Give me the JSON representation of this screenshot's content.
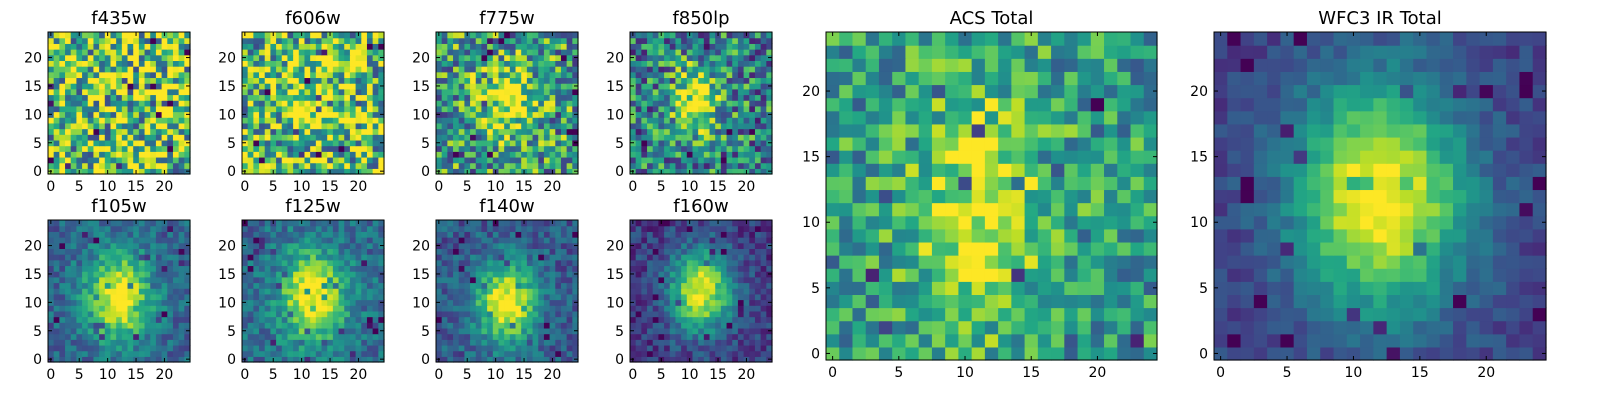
{
  "chart_data": [
    {
      "type": "heatmap",
      "title": "f435w",
      "xlim": [
        0,
        24
      ],
      "ylim": [
        0,
        24
      ],
      "x_ticks": [
        0,
        5,
        10,
        15,
        20
      ],
      "y_ticks": [
        0,
        5,
        10,
        15,
        20
      ],
      "colormap": "viridis",
      "source_center": null
    },
    {
      "type": "heatmap",
      "title": "f606w",
      "xlim": [
        0,
        24
      ],
      "ylim": [
        0,
        24
      ],
      "x_ticks": [
        0,
        5,
        10,
        15,
        20
      ],
      "y_ticks": [
        0,
        5,
        10,
        15,
        20
      ],
      "colormap": "viridis",
      "source_center": [
        11,
        12
      ]
    },
    {
      "type": "heatmap",
      "title": "f775w",
      "xlim": [
        0,
        24
      ],
      "ylim": [
        0,
        24
      ],
      "x_ticks": [
        0,
        5,
        10,
        15,
        20
      ],
      "y_ticks": [
        0,
        5,
        10,
        15,
        20
      ],
      "colormap": "viridis",
      "source_center": [
        12,
        12
      ]
    },
    {
      "type": "heatmap",
      "title": "f850lp",
      "xlim": [
        0,
        24
      ],
      "ylim": [
        0,
        24
      ],
      "x_ticks": [
        0,
        5,
        10,
        15,
        20
      ],
      "y_ticks": [
        0,
        5,
        10,
        15,
        20
      ],
      "colormap": "viridis",
      "source_center": [
        11,
        12
      ]
    },
    {
      "type": "heatmap",
      "title": "ACS Total",
      "xlim": [
        0,
        24
      ],
      "ylim": [
        0,
        24
      ],
      "x_ticks": [
        0,
        5,
        10,
        15,
        20
      ],
      "y_ticks": [
        0,
        5,
        10,
        15,
        20
      ],
      "colormap": "viridis",
      "source_center": [
        11,
        11
      ]
    },
    {
      "type": "heatmap",
      "title": "WFC3 IR Total",
      "xlim": [
        0,
        24
      ],
      "ylim": [
        0,
        24
      ],
      "x_ticks": [
        0,
        5,
        10,
        15,
        20
      ],
      "y_ticks": [
        0,
        5,
        10,
        15,
        20
      ],
      "colormap": "viridis",
      "source_center": [
        12,
        12
      ]
    },
    {
      "type": "heatmap",
      "title": "f105w",
      "xlim": [
        0,
        24
      ],
      "ylim": [
        0,
        24
      ],
      "x_ticks": [
        0,
        5,
        10,
        15,
        20
      ],
      "y_ticks": [
        0,
        5,
        10,
        15,
        20
      ],
      "colormap": "viridis",
      "source_center": [
        12,
        11
      ]
    },
    {
      "type": "heatmap",
      "title": "f125w",
      "xlim": [
        0,
        24
      ],
      "ylim": [
        0,
        24
      ],
      "x_ticks": [
        0,
        5,
        10,
        15,
        20
      ],
      "y_ticks": [
        0,
        5,
        10,
        15,
        20
      ],
      "colormap": "viridis",
      "source_center": [
        12,
        11
      ]
    },
    {
      "type": "heatmap",
      "title": "f140w",
      "xlim": [
        0,
        24
      ],
      "ylim": [
        0,
        24
      ],
      "x_ticks": [
        0,
        5,
        10,
        15,
        20
      ],
      "y_ticks": [
        0,
        5,
        10,
        15,
        20
      ],
      "colormap": "viridis",
      "source_center": [
        12,
        10
      ]
    },
    {
      "type": "heatmap",
      "title": "f160w",
      "xlim": [
        0,
        24
      ],
      "ylim": [
        0,
        24
      ],
      "x_ticks": [
        0,
        5,
        10,
        15,
        20
      ],
      "y_ticks": [
        0,
        5,
        10,
        15,
        20
      ],
      "colormap": "viridis",
      "source_center": [
        12,
        12
      ]
    }
  ]
}
